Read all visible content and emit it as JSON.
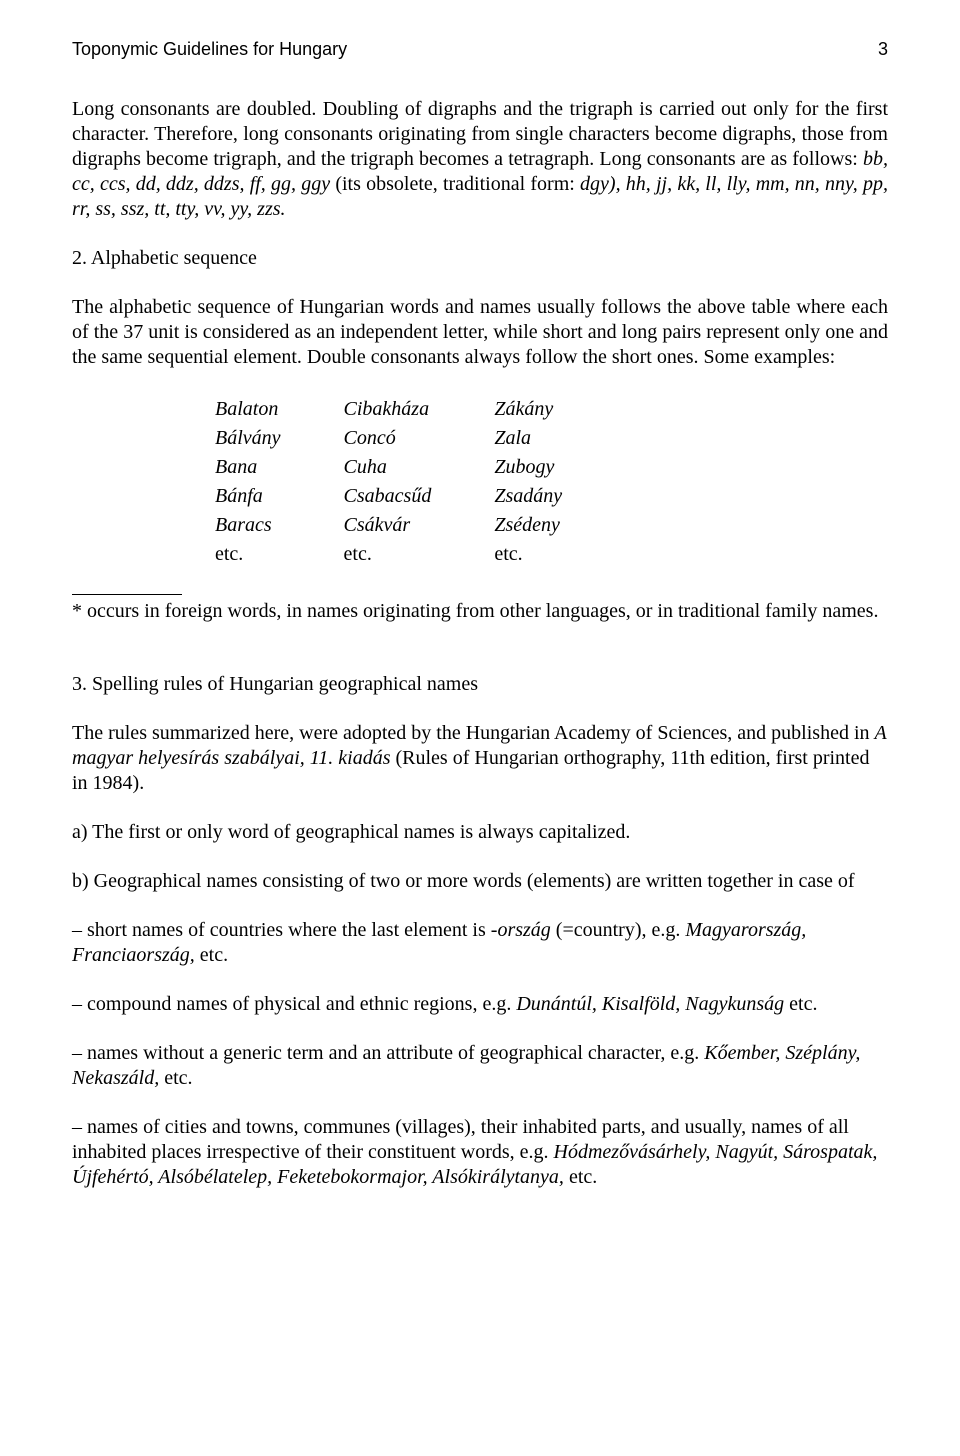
{
  "header": {
    "title": "Toponymic Guidelines for  Hungary",
    "page": "3"
  },
  "p1_a": "Long consonants are doubled. Doubling of digraphs and the trigraph is carried out only for the first character. Therefore, long consonants originating from single characters become digraphs, those from digraphs become trigraph, and the trigraph becomes a tetragraph. Long consonants are as follows: ",
  "p1_b": "bb, cc, ccs, dd, ddz, ddzs, ff, gg, ggy",
  "p1_c": " (its obsolete, traditional form: ",
  "p1_d": "dgy), hh, jj, kk, ll, lly, mm, nn, nny, pp, rr, ss, ssz, tt, tty, vv, yy, zzs.",
  "sec2_title": "2. Alphabetic sequence",
  "sec2_para": "The alphabetic sequence of Hungarian words and names usually follows the above table where each of the 37 unit is considered as an independent letter, while short and long pairs represent only one and the same sequential element. Double consonants always follow the short ones. Some examples:",
  "examples": {
    "col1": [
      "Balaton",
      "Bálvány",
      "Bana",
      "Bánfa",
      "Baracs"
    ],
    "col2": [
      "Cibakháza",
      "Concó",
      "Cuha",
      "Csabacsűd",
      "Csákvár"
    ],
    "col3": [
      "Zákány",
      "Zala",
      "Zubogy",
      "Zsadány",
      "Zsédeny"
    ],
    "etc": "etc."
  },
  "footnote": "* occurs in foreign words, in names originating from other languages, or in traditional family names.",
  "sec3_title": "3. Spelling rules of Hungarian geographical names",
  "sec3_p1_a": "The rules summarized here, were adopted by the Hungarian Academy of Sciences, and published in ",
  "sec3_p1_b": "A magyar helyesírás szabályai, 11. kiadás",
  "sec3_p1_c": " (Rules of Hungarian orthography, 11th edition,  first printed in 1984).",
  "rule_a": "a) The first or only word of geographical names is always capitalized.",
  "rule_b": "b) Geographical names consisting of two or more words (elements) are written together in case of",
  "bullet1_a": "– short names of countries where the last element is ",
  "bullet1_b": "-ország",
  "bullet1_c": " (=country), e.g. ",
  "bullet1_d": "Magyarország, Franciaország,",
  "bullet1_e": " etc.",
  "bullet2_a": "– compound names of physical and ethnic regions, e.g. ",
  "bullet2_b": "Dunántúl, Kisalföld, Nagykunság",
  "bullet2_c": " etc.",
  "bullet3_a": "– names without a generic term and an attribute of geographical character, e.g. ",
  "bullet3_b": "Kőember, Széplány,  Nekaszáld,",
  "bullet3_c": " etc.",
  "bullet4_a": "– names of cities and towns, communes (villages), their inhabited parts, and usually, names of all inhabited places irrespective of their constituent words, e.g. ",
  "bullet4_b": "Hódmezővásárhely,  Nagyút, Sárospatak, Újfehértó, Alsóbélatelep, Feketebokormajor, Alsókirálytanya,",
  "bullet4_c": " etc."
}
